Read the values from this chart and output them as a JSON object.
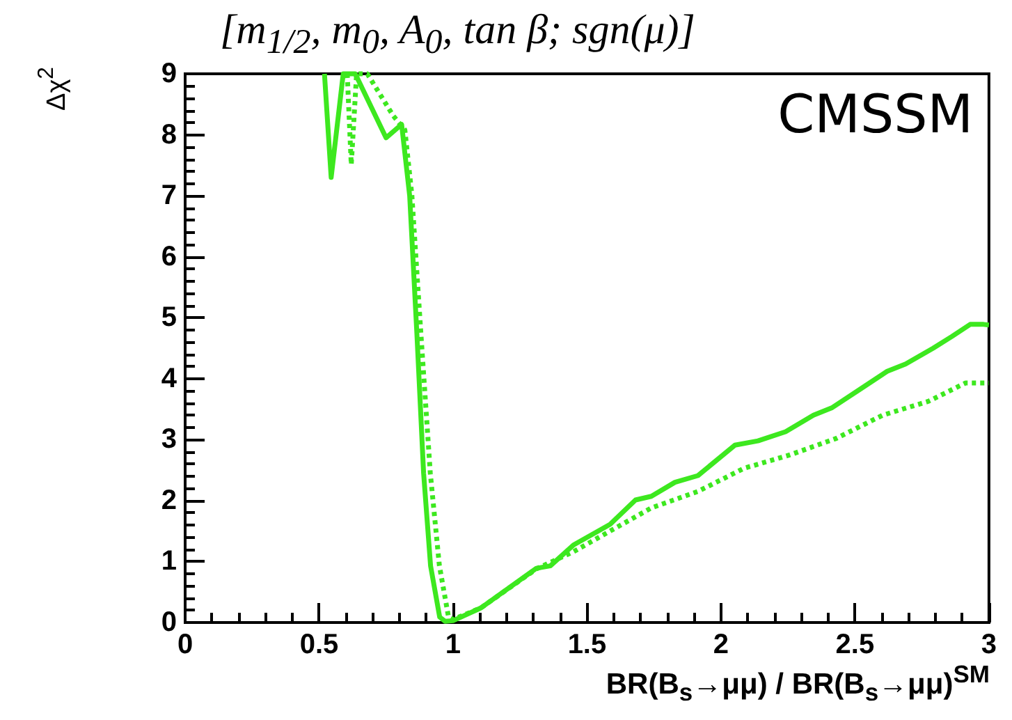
{
  "chart_data": {
    "type": "line",
    "title": "[m$_{1/2}$, m$_{0}$, A$_{0}$, tan β; sgn(μ)]",
    "xlabel": "BR(B$_{s}$→μμ) / BR(B$_{s}$→μμ)$^{SM}$",
    "ylabel": "Δχ$^{2}$",
    "annotations": [
      "CMSSM"
    ],
    "xlim": [
      0,
      3
    ],
    "xticks": [
      0,
      0.5,
      1,
      1.5,
      2,
      2.5,
      3
    ],
    "ylim": [
      0,
      9
    ],
    "yticks": [
      0,
      1,
      2,
      3,
      4,
      5,
      6,
      7,
      8,
      9
    ],
    "grid": false,
    "marker": "none",
    "series": [
      {
        "color": "#3de81f",
        "line_style": "solid",
        "x": [
          0.52,
          0.545,
          0.59,
          0.635,
          0.75,
          0.808,
          0.838,
          0.865,
          0.89,
          0.916,
          0.95,
          0.97,
          1.0,
          1.104,
          1.311,
          1.363,
          1.449,
          1.586,
          1.681,
          1.74,
          1.828,
          1.914,
          2.052,
          2.138,
          2.241,
          2.345,
          2.413,
          2.517,
          2.62,
          2.689,
          2.792,
          2.861,
          2.93,
          2.98,
          3.0
        ],
        "values": [
          9,
          7.3,
          9,
          9,
          7.95,
          8.17,
          7.0,
          4.73,
          2.45,
          0.93,
          0.09,
          0.02,
          0.03,
          0.24,
          0.89,
          0.93,
          1.27,
          1.61,
          2.01,
          2.07,
          2.3,
          2.41,
          2.91,
          2.98,
          3.13,
          3.4,
          3.52,
          3.82,
          4.12,
          4.24,
          4.5,
          4.69,
          4.89,
          4.89,
          4.88
        ]
      },
      {
        "color": "#3de81f",
        "line_style": "dotted",
        "x": [
          0.605,
          0.62,
          0.64,
          0.68,
          0.777,
          0.82,
          0.846,
          0.88,
          0.915,
          0.949,
          0.983,
          1.0,
          1.104,
          1.311,
          1.449,
          1.586,
          1.74,
          1.914,
          2.086,
          2.258,
          2.43,
          2.603,
          2.775,
          2.913,
          3.0
        ],
        "values": [
          9,
          7.51,
          9,
          9,
          8.31,
          8.08,
          7.02,
          4.73,
          2.45,
          0.93,
          0.09,
          0.05,
          0.24,
          0.88,
          1.16,
          1.5,
          1.88,
          2.15,
          2.53,
          2.75,
          3.02,
          3.4,
          3.63,
          3.93,
          3.93
        ]
      }
    ]
  }
}
